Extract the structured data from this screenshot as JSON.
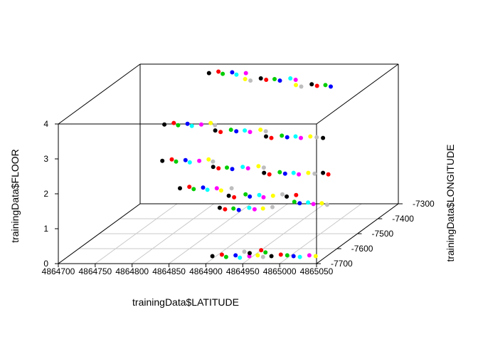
{
  "chart_data": {
    "type": "scatter3d",
    "xlabel": "trainingData$LATITUDE",
    "ylabel": "trainingData$FLOOR",
    "zlabel": "trainingData$LONGITUDE",
    "xlim": [
      4864700,
      4865050
    ],
    "ylim": [
      0,
      4
    ],
    "zlim": [
      -7700,
      -7300
    ],
    "xticks": [
      "4864700",
      "4864750",
      "4864800",
      "4864850",
      "4864900",
      "4864950",
      "4865000",
      "4865050"
    ],
    "yticks": [
      "0",
      "1",
      "2",
      "3",
      "4"
    ],
    "zticks": [
      "-7700",
      "-7600",
      "-7500",
      "-7400",
      "-7300"
    ],
    "grid": true,
    "palette": [
      "#000000",
      "#ff0000",
      "#00cd00",
      "#0000ff",
      "#00ffff",
      "#ff00ff",
      "#ffff00",
      "#bebebe"
    ],
    "series": [
      {
        "floor": 0,
        "points": [
          [
            4864895,
            -7650,
            0
          ],
          [
            4864905,
            -7640,
            1
          ],
          [
            4864915,
            -7655,
            2
          ],
          [
            4864925,
            -7645,
            3
          ],
          [
            4864935,
            -7660,
            4
          ],
          [
            4864945,
            -7650,
            5
          ],
          [
            4864955,
            -7645,
            6
          ],
          [
            4864965,
            -7655,
            7
          ],
          [
            4864975,
            -7650,
            0
          ],
          [
            4864985,
            -7640,
            1
          ],
          [
            4864995,
            -7645,
            2
          ],
          [
            4865005,
            -7650,
            3
          ],
          [
            4865015,
            -7655,
            4
          ],
          [
            4865025,
            -7645,
            5
          ],
          [
            4865035,
            -7650,
            6
          ],
          [
            4864930,
            -7620,
            7
          ],
          [
            4864940,
            -7630,
            0
          ],
          [
            4864950,
            -7610,
            1
          ],
          [
            4864960,
            -7625,
            2
          ]
        ]
      },
      {
        "floor": 1,
        "points": [
          [
            4864790,
            -7430,
            0
          ],
          [
            4864800,
            -7420,
            1
          ],
          [
            4864810,
            -7435,
            2
          ],
          [
            4864820,
            -7425,
            3
          ],
          [
            4864830,
            -7440,
            4
          ],
          [
            4864840,
            -7430,
            5
          ],
          [
            4864850,
            -7445,
            6
          ],
          [
            4864860,
            -7430,
            7
          ],
          [
            4864870,
            -7480,
            0
          ],
          [
            4864880,
            -7490,
            1
          ],
          [
            4864890,
            -7470,
            2
          ],
          [
            4864900,
            -7485,
            3
          ],
          [
            4864910,
            -7475,
            4
          ],
          [
            4864920,
            -7490,
            5
          ],
          [
            4864930,
            -7480,
            6
          ],
          [
            4864940,
            -7470,
            7
          ],
          [
            4864950,
            -7485,
            0
          ],
          [
            4864960,
            -7475,
            1
          ],
          [
            4864970,
            -7520,
            2
          ],
          [
            4864980,
            -7530,
            3
          ],
          [
            4864990,
            -7525,
            4
          ],
          [
            4865000,
            -7535,
            5
          ],
          [
            4865010,
            -7530,
            6
          ],
          [
            4865020,
            -7540,
            7
          ],
          [
            4864880,
            -7560,
            0
          ],
          [
            4864890,
            -7570,
            1
          ],
          [
            4864900,
            -7565,
            2
          ],
          [
            4864910,
            -7575,
            3
          ],
          [
            4864920,
            -7560,
            4
          ],
          [
            4864930,
            -7570,
            5
          ],
          [
            4864940,
            -7565,
            6
          ],
          [
            4864950,
            -7555,
            7
          ]
        ]
      },
      {
        "floor": 2,
        "points": [
          [
            4864780,
            -7480,
            0
          ],
          [
            4864790,
            -7470,
            1
          ],
          [
            4864800,
            -7485,
            2
          ],
          [
            4864810,
            -7475,
            3
          ],
          [
            4864820,
            -7490,
            4
          ],
          [
            4864830,
            -7480,
            5
          ],
          [
            4864840,
            -7470,
            6
          ],
          [
            4864850,
            -7485,
            7
          ],
          [
            4864860,
            -7520,
            0
          ],
          [
            4864870,
            -7530,
            1
          ],
          [
            4864880,
            -7525,
            2
          ],
          [
            4864890,
            -7535,
            3
          ],
          [
            4864900,
            -7520,
            4
          ],
          [
            4864910,
            -7530,
            5
          ],
          [
            4864920,
            -7515,
            6
          ],
          [
            4864930,
            -7525,
            7
          ],
          [
            4864940,
            -7560,
            0
          ],
          [
            4864950,
            -7570,
            1
          ],
          [
            4864960,
            -7555,
            2
          ],
          [
            4864970,
            -7565,
            3
          ],
          [
            4864980,
            -7560,
            4
          ],
          [
            4864990,
            -7570,
            5
          ],
          [
            4865000,
            -7560,
            6
          ],
          [
            4865010,
            -7565,
            7
          ],
          [
            4865020,
            -7560,
            0
          ],
          [
            4865030,
            -7570,
            1
          ]
        ]
      },
      {
        "floor": 3,
        "points": [
          [
            4864780,
            -7470,
            0
          ],
          [
            4864790,
            -7460,
            1
          ],
          [
            4864800,
            -7475,
            2
          ],
          [
            4864810,
            -7465,
            3
          ],
          [
            4864820,
            -7480,
            4
          ],
          [
            4864830,
            -7470,
            5
          ],
          [
            4864840,
            -7460,
            6
          ],
          [
            4864850,
            -7475,
            7
          ],
          [
            4864860,
            -7510,
            0
          ],
          [
            4864870,
            -7520,
            1
          ],
          [
            4864880,
            -7505,
            2
          ],
          [
            4864890,
            -7515,
            3
          ],
          [
            4864900,
            -7510,
            4
          ],
          [
            4864910,
            -7520,
            5
          ],
          [
            4864920,
            -7505,
            6
          ],
          [
            4864930,
            -7515,
            7
          ],
          [
            4864940,
            -7550,
            0
          ],
          [
            4864950,
            -7560,
            1
          ],
          [
            4864960,
            -7545,
            2
          ],
          [
            4864970,
            -7555,
            3
          ],
          [
            4864980,
            -7550,
            4
          ],
          [
            4864990,
            -7560,
            5
          ],
          [
            4865000,
            -7550,
            6
          ],
          [
            4865010,
            -7555,
            7
          ],
          [
            4865020,
            -7560,
            0
          ]
        ]
      },
      {
        "floor": 4,
        "points": [
          [
            4864810,
            -7360,
            0
          ],
          [
            4864820,
            -7350,
            1
          ],
          [
            4864830,
            -7365,
            2
          ],
          [
            4864840,
            -7355,
            3
          ],
          [
            4864850,
            -7370,
            4
          ],
          [
            4864860,
            -7360,
            5
          ],
          [
            4864870,
            -7400,
            6
          ],
          [
            4864880,
            -7410,
            7
          ],
          [
            4864890,
            -7395,
            0
          ],
          [
            4864900,
            -7405,
            1
          ],
          [
            4864910,
            -7400,
            2
          ],
          [
            4864920,
            -7410,
            3
          ],
          [
            4864930,
            -7395,
            4
          ],
          [
            4864940,
            -7405,
            5
          ],
          [
            4864950,
            -7440,
            6
          ],
          [
            4864960,
            -7450,
            7
          ],
          [
            4864970,
            -7435,
            0
          ],
          [
            4864980,
            -7445,
            1
          ],
          [
            4864990,
            -7440,
            2
          ],
          [
            4865000,
            -7450,
            3
          ]
        ]
      }
    ]
  }
}
